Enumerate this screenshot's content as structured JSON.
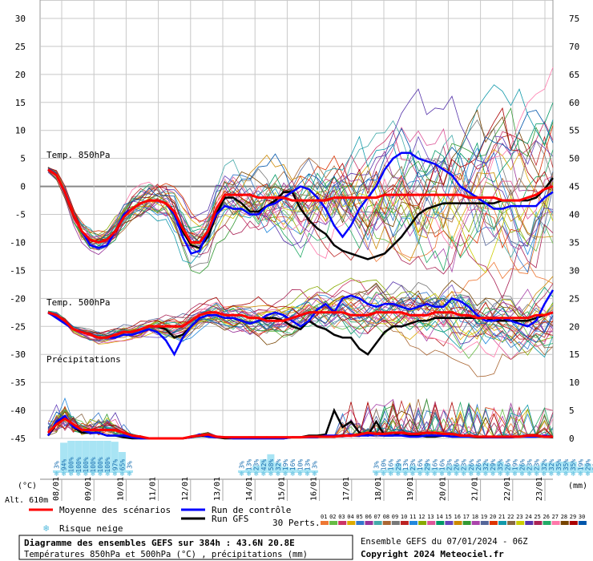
{
  "chart_data": {
    "type": "line",
    "title": "Diagramme des ensembles GEFS sur 384h : 43.6N 20.8E",
    "subtitle": "Températures 850hPa et 500hPa (°C) , précipitations (mm)",
    "run_label": "Ensemble GEFS du 07/01/2024 - 06Z",
    "copyright": "Copyright 2024 Meteociel.fr",
    "altitude": "Alt. 610m",
    "left_unit": "(°C)",
    "right_unit": "(mm)",
    "y_left": {
      "ticks": [
        30,
        25,
        20,
        15,
        10,
        5,
        0,
        -5,
        -10,
        -15,
        -20,
        -25,
        -30,
        -35,
        -40,
        -45
      ],
      "range": [
        -45,
        30
      ]
    },
    "y_right": {
      "ticks": [
        75,
        70,
        65,
        60,
        55,
        50,
        45,
        40,
        35,
        30,
        25,
        20,
        15,
        10,
        5,
        0
      ],
      "range": [
        0,
        75
      ]
    },
    "x_dates": [
      "08/01",
      "09/01",
      "10/01",
      "11/01",
      "12/01",
      "13/01",
      "14/01",
      "15/01",
      "16/01",
      "17/01",
      "18/01",
      "19/01",
      "20/01",
      "21/01",
      "22/01",
      "23/01"
    ],
    "section_labels": {
      "t850": "Temp. 850hPa",
      "t500": "Temp. 500hPa",
      "precip": "Précipitations"
    },
    "legend": {
      "mean": "Moyenne des scénarios",
      "control": "Run de contrôle",
      "gfs": "Run GFS",
      "snow": "Risque neige",
      "perts": "30 Perts.",
      "pert_numbers": [
        "01",
        "02",
        "03",
        "04",
        "05",
        "06",
        "07",
        "08",
        "09",
        "10",
        "11",
        "12",
        "13",
        "14",
        "15",
        "16",
        "17",
        "18",
        "19",
        "20",
        "21",
        "22",
        "23",
        "24",
        "25",
        "26",
        "27",
        "28",
        "29",
        "30"
      ]
    },
    "colors": {
      "mean": "#ff0000",
      "control": "#0000ff",
      "gfs": "#000000",
      "zero_line": "#888888",
      "grid": "#bbbbbb",
      "snow": "#a8e4f4",
      "perts": [
        "#ee7733",
        "#66bb44",
        "#cc3366",
        "#ddaa00",
        "#3377cc",
        "#993399",
        "#44aaaa",
        "#aa6633",
        "#777777",
        "#bb2222",
        "#2288dd",
        "#88aa00",
        "#dd5599",
        "#009966",
        "#6644bb",
        "#cc8800",
        "#339933",
        "#aa44aa",
        "#556699",
        "#dd3300",
        "#1199aa",
        "#886644",
        "#cccc00",
        "#5533aa",
        "#aa2255",
        "#22aa66",
        "#ff77aa",
        "#774400",
        "#aa0000",
        "#0055aa"
      ]
    },
    "snow_risk": {
      "group1": {
        "start_step": 1,
        "values": [
          "3%",
          "94%",
          "100%",
          "100%",
          "100%",
          "100%",
          "100%",
          "100%",
          "97%",
          "65%",
          "3%"
        ]
      },
      "group2": {
        "start_step": 23,
        "values": [
          "3%",
          "13%",
          "23%",
          "42%",
          "58%",
          "32%",
          "19%",
          "16%",
          "10%",
          "13%",
          "3%"
        ]
      },
      "group3": {
        "start_step": 39,
        "values": [
          "3%",
          "10%",
          "16%",
          "29%",
          "13%",
          "23%",
          "16%",
          "29%",
          "16%",
          "16%",
          "23%",
          "26%",
          "23%",
          "26%",
          "26%",
          "32%",
          "29%",
          "35%",
          "26%",
          "19%",
          "26%",
          "23%",
          "23%",
          "32%",
          "32%",
          "35%",
          "35%",
          "35%",
          "19%",
          "29%",
          "19%",
          "32%",
          "16%",
          "16%",
          "13%",
          "13%",
          "13%"
        ]
      }
    },
    "series": {
      "t850_mean": [
        3,
        2,
        -1,
        -5,
        -8,
        -9.5,
        -10,
        -9.5,
        -8,
        -5.5,
        -4,
        -3,
        -2.5,
        -2.5,
        -3,
        -4.5,
        -7.5,
        -10,
        -10,
        -8,
        -4,
        -1.5,
        -1.5,
        -1.5,
        -1.5,
        -2,
        -2,
        -2,
        -2,
        -2.5,
        -2.5,
        -2.5,
        -2.5,
        -2.5,
        -2,
        -2,
        -2,
        -2,
        -2,
        -2,
        -1.5,
        -1.5,
        -1.5,
        -1.5,
        -1.5,
        -1.5,
        -1.5,
        -1.5,
        -1.5,
        -1.5,
        -2,
        -2,
        -2,
        -2,
        -2.5,
        -2.5,
        -2.5,
        -2,
        -1.5,
        -0.5,
        0
      ],
      "t850_control": [
        3,
        2,
        -1,
        -5,
        -8,
        -10.5,
        -11,
        -10.5,
        -8,
        -5,
        -4,
        -3,
        -2.5,
        -2.5,
        -3,
        -5,
        -9,
        -12,
        -11.5,
        -8,
        -5,
        -3.5,
        -4,
        -4,
        -5,
        -5,
        -3.5,
        -3,
        -2,
        -1,
        0,
        -0.5,
        -2,
        -4,
        -7,
        -9,
        -7,
        -4,
        -2,
        0,
        3,
        5,
        6,
        6,
        5,
        4.5,
        4,
        3,
        2,
        0,
        -1,
        -2,
        -3,
        -4,
        -4,
        -3.5,
        -3.5,
        -3.5,
        -3.5,
        -2,
        -1
      ],
      "t850_gfs": [
        3,
        2,
        -1,
        -5,
        -8,
        -9.5,
        -10,
        -9.5,
        -8,
        -5.5,
        -4,
        -3,
        -2.5,
        -2.5,
        -3,
        -5,
        -8,
        -10.5,
        -11,
        -9,
        -5,
        -2,
        -2,
        -3,
        -4.5,
        -4.5,
        -3.5,
        -2.5,
        -1,
        -1,
        -4,
        -6,
        -7.5,
        -8.5,
        -10.5,
        -11.5,
        -12,
        -12.5,
        -13,
        -12.5,
        -12,
        -10.5,
        -9,
        -7,
        -5,
        -4,
        -3.5,
        -3,
        -3,
        -3,
        -3,
        -3,
        -3,
        -3,
        -2.5,
        -2.5,
        -2.5,
        -2.5,
        -2,
        -0.5,
        1.5
      ],
      "t500_mean": [
        -22.5,
        -23,
        -24,
        -25.5,
        -26,
        -26.5,
        -27,
        -27,
        -26.5,
        -26,
        -26,
        -25.5,
        -25,
        -25,
        -25,
        -25,
        -25,
        -24,
        -23,
        -22.5,
        -22.5,
        -23,
        -23,
        -23,
        -23.5,
        -23.5,
        -24,
        -24,
        -24,
        -23.5,
        -23,
        -22.5,
        -22.5,
        -22.5,
        -22.5,
        -22.5,
        -23,
        -23,
        -23,
        -22.5,
        -22.5,
        -22.5,
        -22.5,
        -23,
        -23,
        -23,
        -22.5,
        -22.5,
        -22.5,
        -23,
        -23,
        -23.5,
        -23.5,
        -23.5,
        -23.5,
        -23.5,
        -23.5,
        -23.5,
        -23,
        -23,
        -22.5
      ],
      "t500_control": [
        -22.5,
        -23.5,
        -24.5,
        -25.5,
        -26,
        -26.5,
        -27,
        -27,
        -27,
        -26.5,
        -26.5,
        -26,
        -25.5,
        -26,
        -27.5,
        -30,
        -27,
        -25,
        -23.5,
        -23,
        -23,
        -23.5,
        -23.5,
        -24,
        -24.5,
        -24,
        -23,
        -22.5,
        -23,
        -24,
        -25,
        -24,
        -22,
        -21,
        -22.5,
        -20,
        -19.5,
        -20,
        -21,
        -21.5,
        -21,
        -21,
        -21.5,
        -22,
        -21.5,
        -21,
        -21.5,
        -21.5,
        -20,
        -20.5,
        -21.5,
        -23,
        -24,
        -24,
        -23.5,
        -24,
        -24.5,
        -25,
        -24,
        -21,
        -18.5
      ],
      "t500_gfs": [
        -22.5,
        -23,
        -24,
        -25.5,
        -26,
        -26.5,
        -27,
        -27,
        -26.5,
        -26,
        -26,
        -25.5,
        -25,
        -25,
        -25.5,
        -27,
        -26.5,
        -25,
        -23.5,
        -23,
        -23,
        -23.5,
        -23.5,
        -24,
        -24.5,
        -24,
        -23.5,
        -23.5,
        -24,
        -25,
        -25.5,
        -24,
        -25,
        -25.5,
        -26.5,
        -27,
        -27,
        -29,
        -30,
        -28,
        -26,
        -25,
        -25,
        -24.5,
        -24,
        -24,
        -23.5,
        -23.5,
        -23.5,
        -23.5,
        -23.5,
        -23.5,
        -23.5,
        -24,
        -24,
        -24,
        -24,
        -24,
        -23.5,
        -23,
        -22.5
      ],
      "precip_mean": [
        1,
        2.5,
        3.5,
        2.5,
        1.5,
        1.5,
        1.5,
        1.5,
        1.5,
        1,
        0.5,
        0.3,
        0,
        0,
        0,
        0,
        0,
        0.3,
        0.5,
        0.7,
        0.3,
        0.2,
        0.2,
        0.2,
        0.2,
        0.2,
        0.2,
        0.2,
        0.2,
        0.2,
        0.2,
        0.3,
        0.3,
        0.3,
        0.3,
        0.5,
        0.5,
        0.7,
        1,
        0.8,
        0.8,
        1,
        1,
        0.8,
        0.8,
        1,
        1,
        0.8,
        0.8,
        0.5,
        0.5,
        0.3,
        0.3,
        0.3,
        0.3,
        0.3,
        0.3,
        0.5,
        0.5,
        0.3,
        0.3
      ],
      "precip_control": [
        0.5,
        3,
        4,
        2,
        1.5,
        1,
        1,
        0.5,
        0.5,
        0.5,
        0.2,
        0,
        0,
        0,
        0,
        0,
        0,
        0.2,
        0.7,
        0.3,
        0.2,
        0.2,
        0,
        0,
        0,
        0,
        0,
        0,
        0,
        0.2,
        0.2,
        0.2,
        0.2,
        0.5,
        0.5,
        0.5,
        0.7,
        0.5,
        0.5,
        0.7,
        0.5,
        0.5,
        0.5,
        0.3,
        0.3,
        0.5,
        0.5,
        0.5,
        0.3,
        0.3,
        0.3,
        0.3,
        0.2,
        0.2,
        0.2,
        0.2,
        0.3,
        0.3,
        0.3,
        0.5,
        0.3
      ],
      "precip_gfs": [
        0.5,
        2.5,
        4,
        2,
        1,
        1,
        1,
        0.5,
        0.5,
        0.2,
        0,
        0,
        0,
        0,
        0,
        0,
        0,
        0.2,
        0.5,
        0.3,
        0.2,
        0,
        0,
        0,
        0,
        0,
        0,
        0,
        0,
        0.2,
        0.2,
        0.5,
        0.5,
        0.7,
        5,
        2,
        3,
        1,
        0.5,
        3,
        0.5,
        0.5,
        1,
        0.5,
        0.5,
        0.3,
        0.3,
        0.5,
        0.3,
        0.3,
        0.3,
        0.2,
        0.2,
        0.2,
        0.2,
        0.2,
        0.3,
        0.3,
        0.3,
        0.3,
        0.2
      ]
    }
  }
}
